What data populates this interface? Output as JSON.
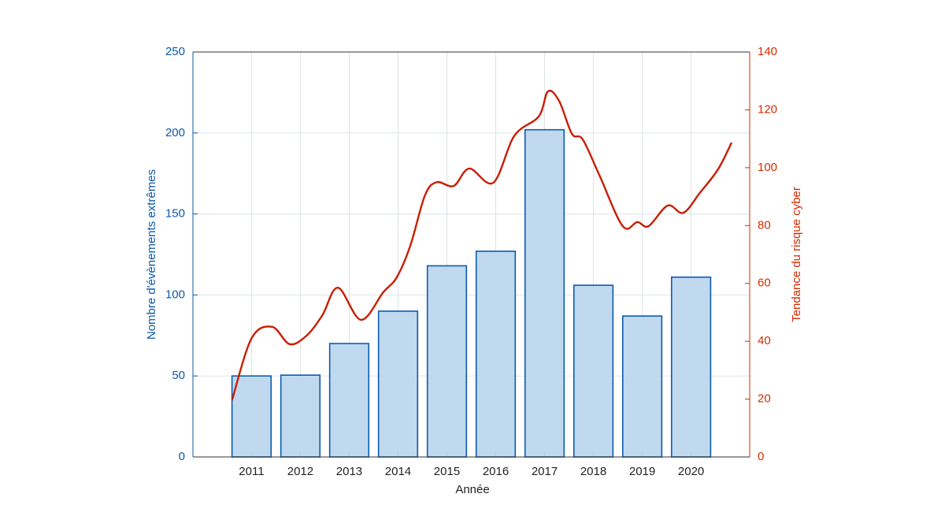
{
  "chart_data": {
    "type": "bar",
    "x_label": "Année",
    "y_label": "Nombre d'évènements extrêmes",
    "y2_label": "Tendance du risque cyber",
    "categories": [
      "2011",
      "2012",
      "2013",
      "2014",
      "2015",
      "2016",
      "2017",
      "2018",
      "2019",
      "2020"
    ],
    "xlim": [
      2009.8,
      2021.2
    ],
    "ylim": [
      0,
      250
    ],
    "yticks": [
      0,
      50,
      100,
      150,
      200,
      250
    ],
    "y2lim": [
      0,
      140
    ],
    "y2ticks": [
      0,
      20,
      40,
      60,
      80,
      100,
      120,
      140
    ],
    "grid": true,
    "series": [
      {
        "type": "bar",
        "color": "#bdd7ee",
        "edge_color": "#0a5cb0",
        "values": [
          50,
          50.5,
          70,
          90,
          118,
          127,
          202,
          106,
          87,
          111
        ]
      },
      {
        "type": "line",
        "axis": "y2",
        "color": "#c81e00",
        "x": [
          2010.6,
          2011,
          2011.42,
          2011.78,
          2012.13,
          2012.45,
          2012.77,
          2013.24,
          2013.7,
          2013.97,
          2014.25,
          2014.55,
          2014.79,
          2015.14,
          2015.46,
          2015.95,
          2016.38,
          2016.88,
          2017.07,
          2017.3,
          2017.56,
          2017.78,
          2018.12,
          2018.6,
          2018.9,
          2019.13,
          2019.52,
          2019.84,
          2020.18,
          2020.55,
          2020.83
        ],
        "values": [
          19.6,
          41,
          45,
          39,
          42,
          49,
          58.5,
          47.4,
          57,
          62,
          73,
          90.4,
          95,
          93.7,
          99.7,
          94.8,
          111,
          117.7,
          126.4,
          123,
          111.7,
          109.8,
          97.5,
          79.8,
          81.2,
          79.8,
          86.9,
          84.4,
          91.3,
          99.4,
          108.7
        ]
      }
    ]
  }
}
